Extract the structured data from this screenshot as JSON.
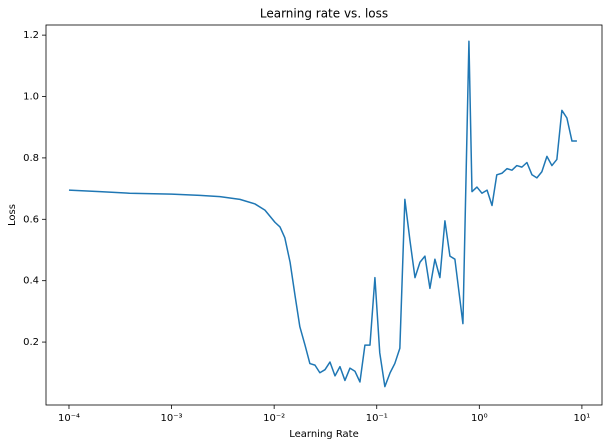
{
  "chart_data": {
    "type": "line",
    "title": "Learning rate vs. loss",
    "x_label": "Learning Rate",
    "y_label": "Loss",
    "x_scale": "log",
    "color": "#1f77b4",
    "x": [
      0.0001,
      0.0002,
      0.00039,
      0.001,
      0.00189,
      0.00296,
      0.00464,
      0.0065,
      0.00813,
      0.0102,
      0.0114,
      0.0127,
      0.0143,
      0.016,
      0.0178,
      0.02,
      0.0223,
      0.025,
      0.0279,
      0.0313,
      0.035,
      0.0392,
      0.0438,
      0.049,
      0.0548,
      0.0613,
      0.0686,
      0.0767,
      0.0859,
      0.096,
      0.107,
      0.12,
      0.135,
      0.15,
      0.168,
      0.188,
      0.211,
      0.236,
      0.264,
      0.295,
      0.33,
      0.369,
      0.413,
      0.462,
      0.517,
      0.578,
      0.692,
      0.792,
      0.848,
      0.948,
      1.06,
      1.19,
      1.33,
      1.48,
      1.66,
      1.86,
      2.08,
      2.32,
      2.6,
      2.91,
      3.26,
      3.64,
      4.07,
      4.56,
      5.1,
      5.7,
      6.38,
      7.14,
      8.0,
      8.94
    ],
    "values": [
      0.695,
      0.69,
      0.685,
      0.682,
      0.678,
      0.674,
      0.665,
      0.65,
      0.63,
      0.59,
      0.575,
      0.54,
      0.46,
      0.35,
      0.25,
      0.19,
      0.13,
      0.125,
      0.1,
      0.11,
      0.135,
      0.09,
      0.12,
      0.075,
      0.115,
      0.105,
      0.07,
      0.19,
      0.19,
      0.41,
      0.165,
      0.055,
      0.1,
      0.13,
      0.18,
      0.665,
      0.53,
      0.41,
      0.46,
      0.48,
      0.375,
      0.47,
      0.41,
      0.595,
      0.48,
      0.47,
      0.26,
      1.18,
      0.69,
      0.705,
      0.685,
      0.695,
      0.645,
      0.745,
      0.75,
      0.765,
      0.76,
      0.775,
      0.77,
      0.785,
      0.745,
      0.735,
      0.755,
      0.805,
      0.775,
      0.795,
      0.955,
      0.93,
      0.855,
      0.855
    ],
    "xlim": [
      5.97e-05,
      15.7
    ],
    "ylim": [
      -0.005,
      1.233
    ],
    "xticks": [
      {
        "value": 0.0001,
        "label": "10⁻⁴"
      },
      {
        "value": 0.001,
        "label": "10⁻³"
      },
      {
        "value": 0.01,
        "label": "10⁻²"
      },
      {
        "value": 0.1,
        "label": "10⁻¹"
      },
      {
        "value": 1,
        "label": "10⁰"
      },
      {
        "value": 10,
        "label": "10¹"
      }
    ],
    "yticks": [
      0.2,
      0.4,
      0.6,
      0.8,
      {
        "value": 1,
        "label": "1.0"
      },
      1.2
    ]
  }
}
